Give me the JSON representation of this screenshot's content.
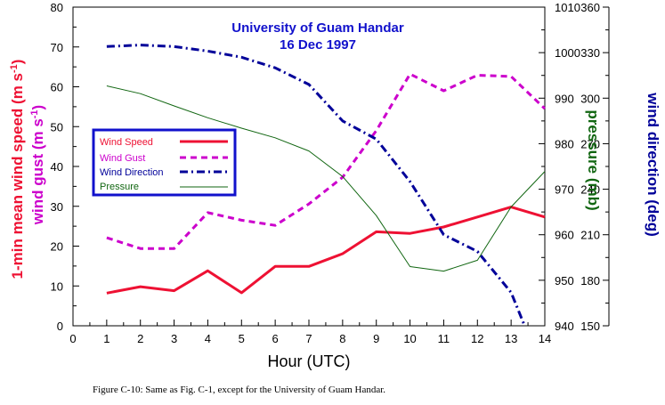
{
  "caption": "Figure C-10: Same as Fig. C-1, except for the University of Guam Handar.",
  "colors": {
    "wind_speed": "#ee1133",
    "wind_gust": "#cc00cc",
    "wind_direction": "#000099",
    "pressure": "#116611",
    "title": "#1111cc",
    "legend_border": "#1111cc"
  },
  "chart_data": {
    "type": "line",
    "title": "University of Guam Handar",
    "subtitle": "16 Dec 1997",
    "xlabel": "Hour (UTC)",
    "xlim": [
      0,
      14
    ],
    "x_ticks": [
      "0",
      "1",
      "2",
      "3",
      "4",
      "5",
      "6",
      "7",
      "8",
      "9",
      "10",
      "11",
      "12",
      "13",
      "14"
    ],
    "grid": false,
    "legend_position": "left",
    "axes": {
      "left_outer": {
        "label": "1-min mean wind speed (m s-1)",
        "label_main": "1-min mean wind speed (m s",
        "label_sup": "-1",
        "label_end": ")",
        "ylim": [
          0,
          80
        ],
        "ticks": [
          "0",
          "10",
          "20",
          "30",
          "40",
          "50",
          "60",
          "70",
          "80"
        ]
      },
      "left_inner": {
        "label": "wind gust (m s-1)",
        "label_main": "wind gust (m s",
        "label_sup": "-1",
        "label_end": ")"
      },
      "right_inner": {
        "label": "pressure (mb)",
        "ylim": [
          940,
          1010
        ],
        "ticks": [
          "940",
          "950",
          "960",
          "970",
          "980",
          "990",
          "1000",
          "1010"
        ]
      },
      "right_outer": {
        "label": "wind direction (deg)",
        "ylim": [
          150,
          360
        ],
        "ticks": [
          "150",
          "180",
          "210",
          "240",
          "270",
          "300",
          "330",
          "360"
        ]
      }
    },
    "series": [
      {
        "name": "Wind Speed",
        "axis": "left",
        "style": "solid",
        "x": [
          1,
          2,
          3,
          4,
          5,
          6,
          7,
          8,
          9,
          10,
          11,
          12,
          13,
          14
        ],
        "values": [
          8.2,
          9.8,
          8.8,
          13.8,
          8.3,
          14.9,
          14.9,
          18.1,
          23.6,
          23.2,
          24.8,
          27.3,
          29.8,
          27.3
        ]
      },
      {
        "name": "Wind Gust",
        "axis": "left",
        "style": "dashed",
        "x": [
          1,
          2,
          3,
          4,
          5,
          6,
          7,
          8,
          9,
          10,
          11,
          12,
          13,
          14
        ],
        "values": [
          22.1,
          19.4,
          19.4,
          28.4,
          26.5,
          25.2,
          30.6,
          37.3,
          49.0,
          63.2,
          59.0,
          62.9,
          62.6,
          54.5
        ]
      },
      {
        "name": "Wind Direction",
        "axis": "right_outer",
        "style": "dash-dot",
        "x": [
          1,
          2,
          3,
          4,
          5,
          6,
          7,
          8,
          9,
          10,
          11,
          12,
          13,
          13.4
        ],
        "values": [
          334,
          335,
          334,
          331,
          327,
          320,
          309,
          285,
          273,
          245,
          210,
          199,
          172,
          150
        ]
      },
      {
        "name": "Pressure",
        "axis": "right_inner",
        "style": "thin-solid",
        "x": [
          1,
          2,
          3,
          4,
          5,
          6,
          7,
          8,
          9,
          10,
          11,
          12,
          13,
          14
        ],
        "values": [
          992.7,
          991.0,
          988.3,
          985.7,
          983.4,
          981.3,
          978.4,
          972.8,
          964.2,
          953.0,
          952.0,
          954.4,
          966.1,
          973.9
        ]
      }
    ]
  }
}
